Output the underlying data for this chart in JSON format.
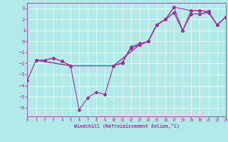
{
  "xlabel": "Windchill (Refroidissement éolien,°C)",
  "bg_color": "#b2eaea",
  "line_color": "#993399",
  "xlim": [
    0,
    23
  ],
  "ylim": [
    -6.8,
    3.5
  ],
  "yticks": [
    3,
    2,
    1,
    0,
    -1,
    -2,
    -3,
    -4,
    -5,
    -6
  ],
  "xticks": [
    0,
    1,
    2,
    3,
    4,
    5,
    6,
    7,
    8,
    9,
    10,
    11,
    12,
    13,
    14,
    15,
    16,
    17,
    18,
    19,
    20,
    21,
    22,
    23
  ],
  "lines": [
    {
      "x": [
        0,
        1,
        2,
        3,
        4,
        5,
        6,
        7,
        8,
        9,
        10,
        11,
        12,
        13,
        14,
        15,
        16,
        17,
        18,
        19,
        20,
        21,
        22,
        23
      ],
      "y": [
        -3.5,
        -1.7,
        -1.7,
        -1.5,
        -1.8,
        -2.2,
        -6.2,
        -5.1,
        -4.6,
        -4.8,
        -2.2,
        -2.0,
        -0.6,
        -0.3,
        0.0,
        1.5,
        2.0,
        3.1,
        1.0,
        2.8,
        2.8,
        2.7,
        1.5,
        2.2
      ]
    },
    {
      "x": [
        1,
        2,
        3,
        4,
        5,
        10,
        11,
        12,
        13,
        14,
        15,
        16,
        17,
        18,
        19,
        20,
        21,
        22,
        23
      ],
      "y": [
        -1.7,
        -1.7,
        -1.5,
        -1.8,
        -2.2,
        -2.2,
        -1.9,
        -0.5,
        -0.2,
        0.0,
        1.5,
        2.0,
        2.6,
        1.0,
        2.5,
        2.5,
        2.7,
        1.5,
        2.2
      ]
    },
    {
      "x": [
        1,
        5,
        10,
        13,
        14,
        15,
        16,
        17,
        18,
        19,
        20,
        21,
        22,
        23
      ],
      "y": [
        -1.7,
        -2.2,
        -2.2,
        -0.3,
        0.0,
        1.5,
        2.0,
        2.6,
        1.0,
        2.5,
        2.5,
        2.6,
        1.5,
        2.2
      ]
    },
    {
      "x": [
        1,
        5,
        10,
        13,
        14,
        15,
        16,
        17,
        19,
        20,
        21,
        22,
        23
      ],
      "y": [
        -1.7,
        -2.2,
        -2.2,
        -0.3,
        0.0,
        1.5,
        2.0,
        3.1,
        2.8,
        2.8,
        2.7,
        1.5,
        2.2
      ]
    }
  ]
}
